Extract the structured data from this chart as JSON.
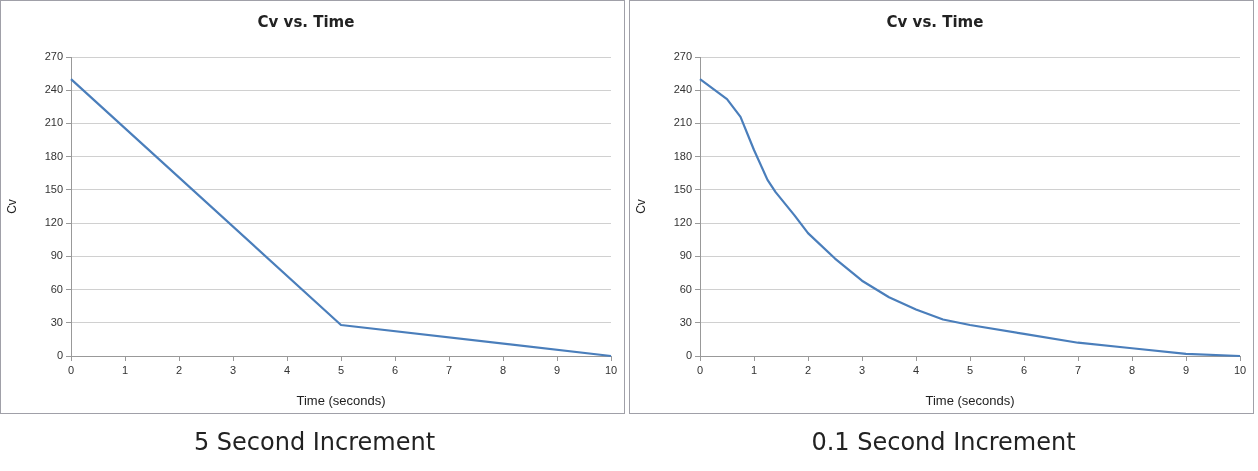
{
  "chart_data": [
    {
      "type": "line",
      "title": "Cv vs. Time",
      "xlabel": "Time (seconds)",
      "ylabel": "Cv",
      "annotations": [
        "5 Second Increment"
      ],
      "x": [
        0,
        5,
        10
      ],
      "series": [
        {
          "color": "#4a7ebb",
          "values": [
            250,
            28,
            0
          ]
        }
      ],
      "xlim": [
        0,
        10
      ],
      "xticks": [
        0,
        1,
        2,
        3,
        4,
        5,
        6,
        7,
        8,
        9,
        10
      ],
      "ylim": [
        0,
        270
      ],
      "yticks": [
        0,
        30,
        60,
        90,
        120,
        150,
        180,
        210,
        240,
        270
      ],
      "grid": "y",
      "legend": false,
      "marker": "none"
    },
    {
      "type": "line",
      "title": "Cv vs. Time",
      "xlabel": "Time (seconds)",
      "ylabel": "Cv",
      "annotations": [
        "0.1 Second Increment"
      ],
      "x": [
        0,
        0.25,
        0.5,
        0.75,
        1,
        1.25,
        1.4,
        1.75,
        2,
        2.5,
        3,
        3.5,
        4,
        4.5,
        5,
        6,
        7,
        8,
        9,
        10
      ],
      "series": [
        {
          "color": "#4a7ebb",
          "values": [
            250,
            241,
            232,
            216,
            186,
            159,
            148,
            127,
            111,
            88,
            68,
            53,
            42,
            33,
            28,
            20,
            12,
            7,
            2,
            0
          ]
        }
      ],
      "xlim": [
        0,
        10
      ],
      "xticks": [
        0,
        1,
        2,
        3,
        4,
        5,
        6,
        7,
        8,
        9,
        10
      ],
      "ylim": [
        0,
        270
      ],
      "yticks": [
        0,
        30,
        60,
        90,
        120,
        150,
        180,
        210,
        240,
        270
      ],
      "grid": "y",
      "legend": false,
      "marker": "none"
    }
  ]
}
